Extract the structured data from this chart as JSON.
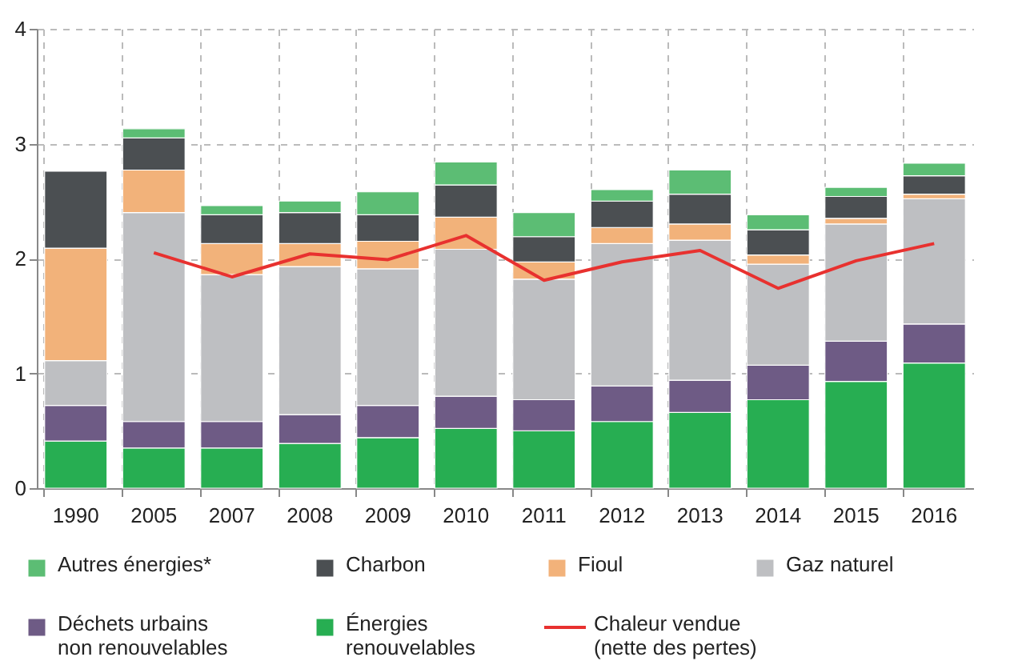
{
  "chart_data": {
    "type": "bar",
    "stacked": true,
    "categories": [
      "1990",
      "2005",
      "2007",
      "2008",
      "2009",
      "2010",
      "2011",
      "2012",
      "2013",
      "2014",
      "2015",
      "2016"
    ],
    "series": [
      {
        "name": "Énergies renouvelables",
        "color": "#27ae52",
        "values": [
          0.41,
          0.35,
          0.35,
          0.39,
          0.44,
          0.52,
          0.5,
          0.58,
          0.66,
          0.77,
          0.93,
          1.09
        ]
      },
      {
        "name": "Déchets urbains non renouvelables",
        "color": "#6e5b85",
        "values": [
          0.31,
          0.23,
          0.23,
          0.25,
          0.28,
          0.28,
          0.27,
          0.31,
          0.28,
          0.3,
          0.35,
          0.34
        ]
      },
      {
        "name": "Gaz naturel",
        "color": "#bebfc2",
        "values": [
          0.39,
          1.82,
          1.28,
          1.29,
          1.19,
          1.28,
          1.05,
          1.24,
          1.22,
          0.88,
          1.02,
          1.09
        ]
      },
      {
        "name": "Fioul",
        "color": "#f2b27a",
        "values": [
          0.98,
          0.37,
          0.27,
          0.2,
          0.24,
          0.28,
          0.15,
          0.14,
          0.14,
          0.08,
          0.05,
          0.04
        ]
      },
      {
        "name": "Charbon",
        "color": "#4b4f52",
        "values": [
          0.67,
          0.28,
          0.25,
          0.27,
          0.23,
          0.28,
          0.22,
          0.23,
          0.26,
          0.22,
          0.19,
          0.16
        ]
      },
      {
        "name": "Autres énergies*",
        "color": "#5cbd74",
        "values": [
          null,
          0.08,
          0.08,
          0.1,
          0.2,
          0.2,
          0.21,
          0.1,
          0.21,
          0.13,
          0.08,
          0.11
        ]
      },
      {
        "name": "Chaleur vendue (nette des pertes)",
        "type": "line",
        "color": "#e8312f",
        "values": [
          null,
          2.05,
          1.84,
          2.04,
          1.99,
          2.2,
          1.81,
          1.97,
          2.07,
          1.74,
          1.98,
          2.13
        ]
      }
    ],
    "ylim": [
      0,
      4
    ],
    "yticks": [
      0,
      1,
      2,
      3,
      4
    ],
    "grid": true,
    "legend": "bottom",
    "marker": "none",
    "line_style": "solid"
  }
}
